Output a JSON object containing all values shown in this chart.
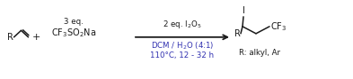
{
  "bg_color": "#ffffff",
  "text_color": "#1a1a1a",
  "blue_color": "#3030b0",
  "arrow_color": "#1a1a1a",
  "r_label": "R",
  "plus_sign": "+",
  "eq_label": "3 eq.",
  "cf3so2na": "CF$_3$SO$_2$Na",
  "reagent_above": "2 eq. I$_2$O$_5$",
  "reagent_below1": "DCM / H$_2$O (4:1)",
  "reagent_below2": "110°C, 12 - 32 h",
  "i_label": "I",
  "cf3_label": "CF$_3$",
  "r_alkyl": "R: alkyl, Ar",
  "fs": 7.0,
  "fs_small": 6.2,
  "fig_w": 3.93,
  "fig_h": 0.89,
  "dpi": 100
}
